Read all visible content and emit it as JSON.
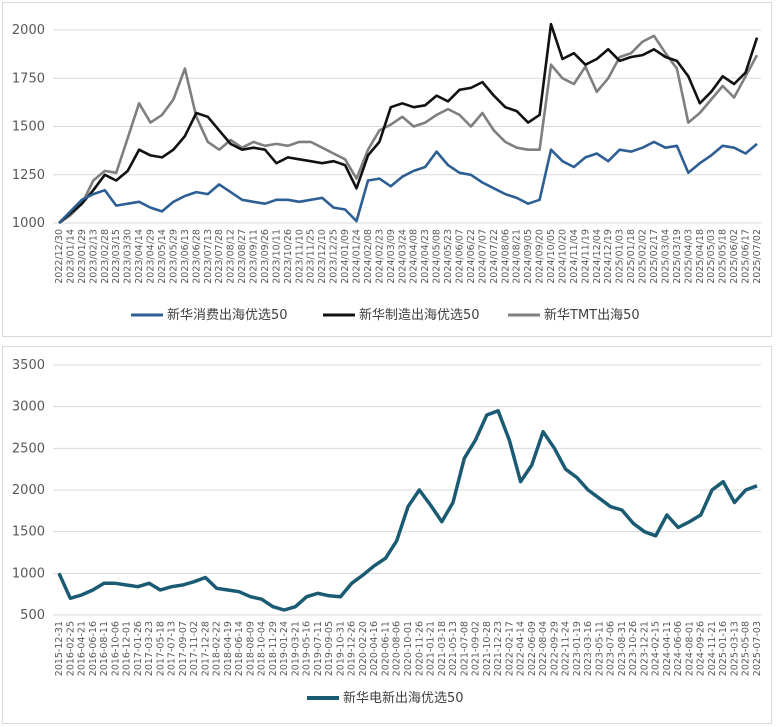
{
  "chart_data": [
    {
      "type": "line",
      "ylim": [
        1000,
        2000
      ],
      "yticks": [
        "1000",
        "1250",
        "1500",
        "1750",
        "2000"
      ],
      "grid": "horizontal",
      "legend_position": "bottom",
      "x_tick_labels": [
        "2022/12/30",
        "2023/01/14",
        "2023/01/29",
        "2023/02/13",
        "2023/02/28",
        "2023/03/15",
        "2023/03/30",
        "2023/04/14",
        "2023/04/29",
        "2023/05/14",
        "2023/05/29",
        "2023/06/13",
        "2023/06/28",
        "2023/07/13",
        "2023/07/28",
        "2023/08/12",
        "2023/08/27",
        "2023/09/11",
        "2023/09/26",
        "2023/10/11",
        "2023/10/26",
        "2023/11/10",
        "2023/11/25",
        "2023/12/10",
        "2023/12/25",
        "2024/01/09",
        "2024/01/24",
        "2024/02/08",
        "2024/02/23",
        "2024/03/09",
        "2024/03/24",
        "2024/04/08",
        "2024/04/23",
        "2024/05/08",
        "2024/05/23",
        "2024/06/07",
        "2024/06/22",
        "2024/07/07",
        "2024/07/22",
        "2024/08/06",
        "2024/08/21",
        "2024/09/05",
        "2024/09/20",
        "2024/10/05",
        "2024/10/20",
        "2024/11/04",
        "2024/11/19",
        "2024/12/04",
        "2024/12/19",
        "2025/01/03",
        "2025/01/18",
        "2025/02/02",
        "2025/02/17",
        "2025/03/04",
        "2025/03/19",
        "2025/04/03",
        "2025/04/18",
        "2025/05/03",
        "2025/05/18",
        "2025/06/02",
        "2025/06/17",
        "2025/07/02"
      ],
      "series": [
        {
          "name": "新华消费出海优选50",
          "color": "#2e5f94",
          "width": 2.6,
          "values": [
            1000,
            1060,
            1120,
            1150,
            1170,
            1090,
            1100,
            1110,
            1080,
            1060,
            1110,
            1140,
            1160,
            1150,
            1200,
            1160,
            1120,
            1110,
            1100,
            1120,
            1120,
            1110,
            1120,
            1130,
            1080,
            1070,
            1010,
            1220,
            1230,
            1190,
            1240,
            1270,
            1290,
            1370,
            1300,
            1260,
            1250,
            1210,
            1180,
            1150,
            1130,
            1100,
            1120,
            1380,
            1320,
            1290,
            1340,
            1360,
            1320,
            1380,
            1370,
            1390,
            1420,
            1390,
            1400,
            1260,
            1310,
            1350,
            1400,
            1390,
            1360,
            1410
          ]
        },
        {
          "name": "新华制造出海优选50",
          "color": "#111111",
          "width": 2.6,
          "values": [
            1000,
            1050,
            1100,
            1170,
            1250,
            1220,
            1270,
            1380,
            1350,
            1340,
            1380,
            1450,
            1570,
            1550,
            1480,
            1410,
            1380,
            1390,
            1380,
            1310,
            1340,
            1330,
            1320,
            1310,
            1320,
            1300,
            1180,
            1350,
            1420,
            1600,
            1620,
            1600,
            1610,
            1660,
            1630,
            1690,
            1700,
            1730,
            1660,
            1600,
            1580,
            1520,
            1560,
            2030,
            1850,
            1880,
            1820,
            1850,
            1900,
            1840,
            1860,
            1870,
            1900,
            1860,
            1840,
            1760,
            1620,
            1680,
            1760,
            1720,
            1780,
            1960
          ]
        },
        {
          "name": "新华TMT出海50",
          "color": "#7f7f7f",
          "width": 2.6,
          "values": [
            1000,
            1040,
            1100,
            1220,
            1270,
            1260,
            1440,
            1620,
            1520,
            1560,
            1640,
            1800,
            1550,
            1420,
            1380,
            1430,
            1390,
            1420,
            1400,
            1410,
            1400,
            1420,
            1420,
            1390,
            1360,
            1330,
            1230,
            1380,
            1480,
            1510,
            1550,
            1500,
            1520,
            1560,
            1590,
            1560,
            1500,
            1570,
            1480,
            1420,
            1390,
            1380,
            1380,
            1820,
            1750,
            1720,
            1810,
            1680,
            1750,
            1860,
            1880,
            1940,
            1970,
            1880,
            1800,
            1520,
            1570,
            1640,
            1710,
            1650,
            1760,
            1870
          ]
        }
      ]
    },
    {
      "type": "line",
      "ylim": [
        500,
        3500
      ],
      "yticks": [
        "500",
        "1000",
        "1500",
        "2000",
        "2500",
        "3000",
        "3500"
      ],
      "grid": "horizontal",
      "legend_position": "bottom",
      "x_tick_labels": [
        "2015-12-31",
        "2016-02-25",
        "2016-04-21",
        "2016-06-16",
        "2016-08-11",
        "2016-10-06",
        "2016-12-01",
        "2017-01-26",
        "2017-03-23",
        "2017-05-18",
        "2017-07-13",
        "2017-09-07",
        "2017-11-02",
        "2017-12-28",
        "2018-02-22",
        "2018-04-19",
        "2018-06-14",
        "2018-08-09",
        "2018-10-04",
        "2018-11-29",
        "2019-01-24",
        "2019-03-21",
        "2019-05-16",
        "2019-07-11",
        "2019-09-05",
        "2019-10-31",
        "2019-12-26",
        "2020-02-20",
        "2020-04-16",
        "2020-06-11",
        "2020-08-06",
        "2020-10-01",
        "2020-11-26",
        "2021-01-21",
        "2021-03-18",
        "2021-05-13",
        "2021-07-08",
        "2021-09-02",
        "2021-10-28",
        "2021-12-23",
        "2022-02-17",
        "2022-04-14",
        "2022-06-09",
        "2022-08-04",
        "2022-09-29",
        "2022-11-24",
        "2023-01-19",
        "2023-03-16",
        "2023-05-11",
        "2023-07-06",
        "2023-08-31",
        "2023-10-26",
        "2023-12-21",
        "2024-02-15",
        "2024-04-11",
        "2024-06-06",
        "2024-08-01",
        "2024-09-26",
        "2024-11-21",
        "2025-01-16",
        "2025-03-13",
        "2025-05-08",
        "2025-07-03"
      ],
      "series": [
        {
          "name": "新华电新出海优选50",
          "color": "#1a5b73",
          "width": 3.5,
          "values": [
            1000,
            700,
            740,
            800,
            880,
            880,
            860,
            840,
            880,
            800,
            840,
            860,
            900,
            950,
            820,
            800,
            780,
            720,
            690,
            600,
            560,
            600,
            720,
            760,
            730,
            720,
            880,
            980,
            1090,
            1180,
            1390,
            1800,
            2000,
            1820,
            1620,
            1850,
            2380,
            2600,
            2900,
            2950,
            2600,
            2100,
            2300,
            2700,
            2500,
            2250,
            2150,
            2000,
            1900,
            1800,
            1760,
            1600,
            1500,
            1450,
            1700,
            1550,
            1620,
            1700,
            2000,
            2100,
            1850,
            2000,
            2050
          ]
        }
      ]
    }
  ]
}
